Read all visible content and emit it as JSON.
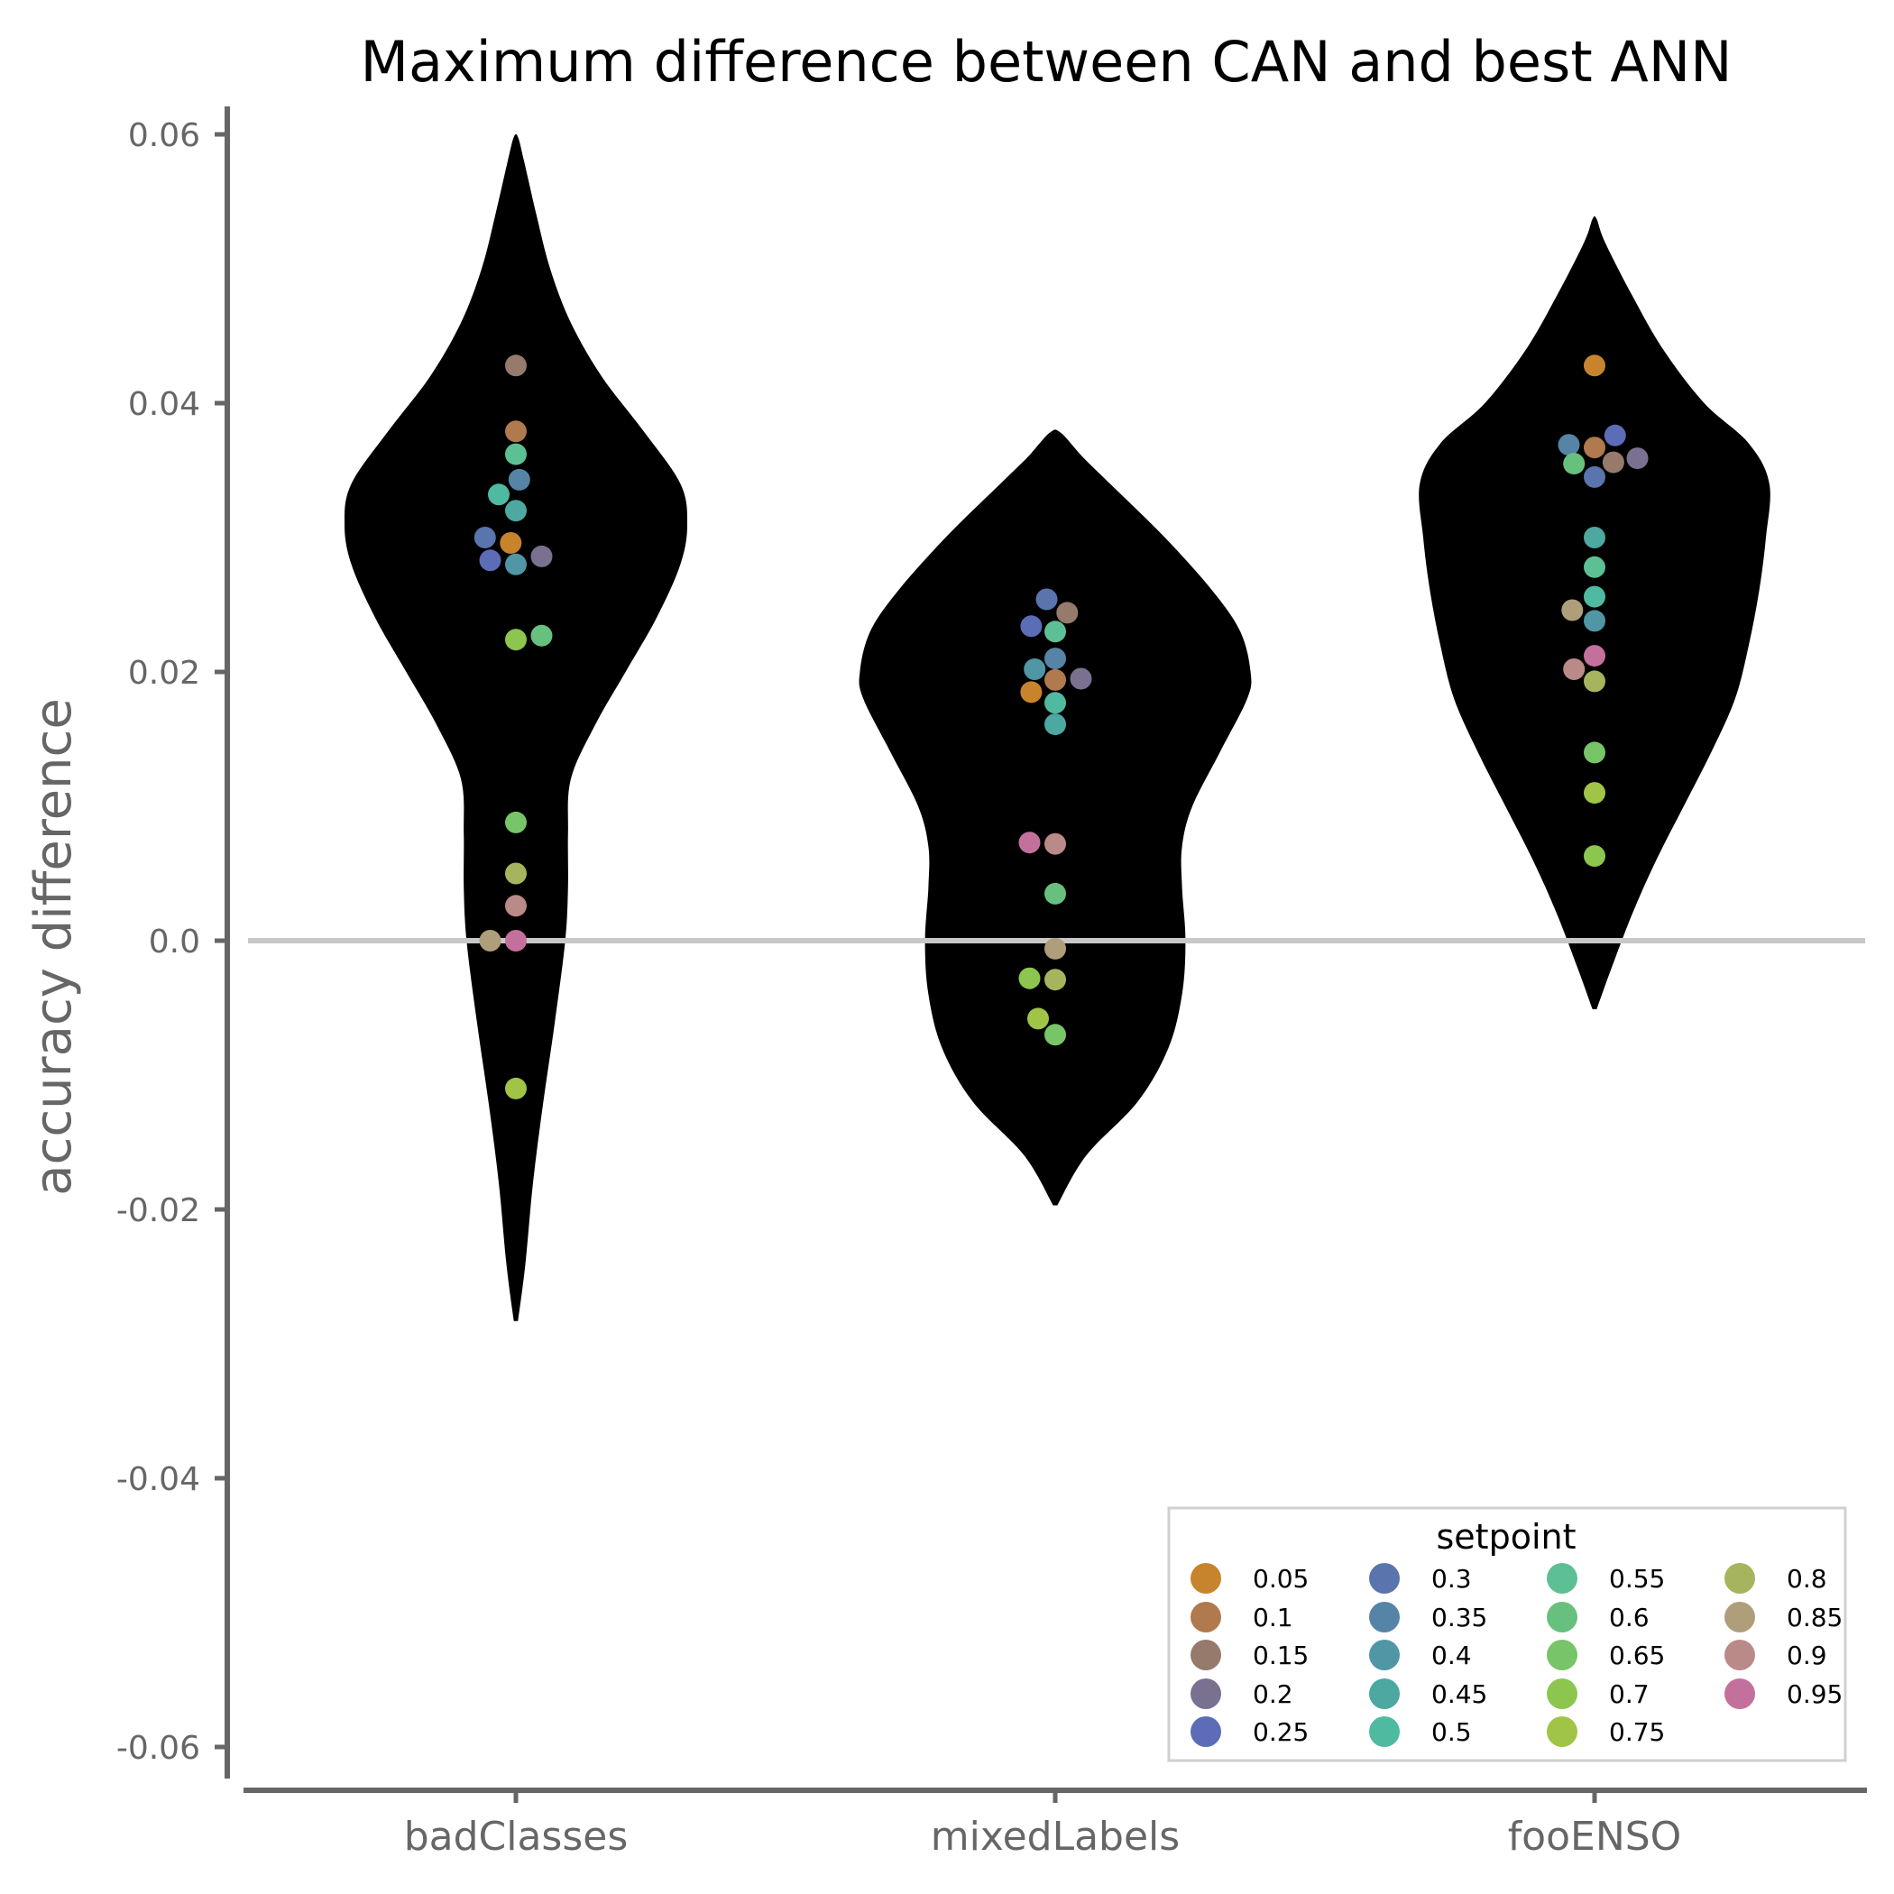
{
  "chart_data": {
    "type": "violin",
    "title": "Maximum difference between CAN and best ANN",
    "xlabel": "",
    "ylabel": "accuracy difference",
    "ylim": [
      -0.06,
      0.06
    ],
    "yticks": [
      -0.06,
      -0.04,
      -0.02,
      0.0,
      0.02,
      0.04,
      0.06
    ],
    "ytick_labels": [
      "-0.06",
      "-0.04",
      "-0.02",
      "0.0",
      "0.02",
      "0.04",
      "0.06"
    ],
    "reference_line": 0.0,
    "categories": [
      "badClasses",
      "mixedLabels",
      "fooENSO"
    ],
    "violin_color": "#000000",
    "violins": [
      {
        "category": "badClasses",
        "min": -0.0283,
        "max": 0.0598,
        "profile": [
          [
            -0.0283,
            0.003
          ],
          [
            -0.024,
            0.014
          ],
          [
            -0.018,
            0.025
          ],
          [
            -0.012,
            0.04
          ],
          [
            -0.006,
            0.057
          ],
          [
            0.0,
            0.072
          ],
          [
            0.004,
            0.076
          ],
          [
            0.008,
            0.076
          ],
          [
            0.012,
            0.08
          ],
          [
            0.016,
            0.115
          ],
          [
            0.02,
            0.16
          ],
          [
            0.024,
            0.205
          ],
          [
            0.028,
            0.24
          ],
          [
            0.031,
            0.25
          ],
          [
            0.034,
            0.24
          ],
          [
            0.038,
            0.185
          ],
          [
            0.042,
            0.125
          ],
          [
            0.046,
            0.08
          ],
          [
            0.05,
            0.05
          ],
          [
            0.054,
            0.03
          ],
          [
            0.058,
            0.012
          ],
          [
            0.0598,
            0.003
          ]
        ]
      },
      {
        "category": "mixedLabels",
        "min": -0.0197,
        "max": 0.0378,
        "profile": [
          [
            -0.0197,
            0.003
          ],
          [
            -0.016,
            0.045
          ],
          [
            -0.012,
            0.12
          ],
          [
            -0.008,
            0.165
          ],
          [
            -0.004,
            0.185
          ],
          [
            0.0,
            0.19
          ],
          [
            0.004,
            0.185
          ],
          [
            0.007,
            0.185
          ],
          [
            0.01,
            0.2
          ],
          [
            0.014,
            0.24
          ],
          [
            0.018,
            0.28
          ],
          [
            0.02,
            0.285
          ],
          [
            0.023,
            0.27
          ],
          [
            0.026,
            0.23
          ],
          [
            0.03,
            0.16
          ],
          [
            0.034,
            0.08
          ],
          [
            0.036,
            0.04
          ],
          [
            0.0378,
            0.008
          ]
        ]
      },
      {
        "category": "fooENSO",
        "min": -0.0051,
        "max": 0.0537,
        "profile": [
          [
            -0.0051,
            0.003
          ],
          [
            -0.002,
            0.025
          ],
          [
            0.002,
            0.055
          ],
          [
            0.006,
            0.09
          ],
          [
            0.01,
            0.13
          ],
          [
            0.014,
            0.17
          ],
          [
            0.018,
            0.205
          ],
          [
            0.022,
            0.225
          ],
          [
            0.026,
            0.24
          ],
          [
            0.03,
            0.25
          ],
          [
            0.034,
            0.255
          ],
          [
            0.037,
            0.225
          ],
          [
            0.04,
            0.16
          ],
          [
            0.044,
            0.1
          ],
          [
            0.048,
            0.055
          ],
          [
            0.052,
            0.015
          ],
          [
            0.0537,
            0.003
          ]
        ]
      }
    ],
    "legend": {
      "title": "setpoint",
      "placement": "bottom-right",
      "entries": [
        {
          "label": "0.05",
          "color": "#C8842C"
        },
        {
          "label": "0.1",
          "color": "#B07A4E"
        },
        {
          "label": "0.15",
          "color": "#967A6C"
        },
        {
          "label": "0.2",
          "color": "#7A7190"
        },
        {
          "label": "0.25",
          "color": "#5C6CB6"
        },
        {
          "label": "0.3",
          "color": "#5A74AE"
        },
        {
          "label": "0.35",
          "color": "#5684A6"
        },
        {
          "label": "0.4",
          "color": "#5096A4"
        },
        {
          "label": "0.45",
          "color": "#4CA8A0"
        },
        {
          "label": "0.5",
          "color": "#50BAA0"
        },
        {
          "label": "0.55",
          "color": "#5CC094"
        },
        {
          "label": "0.6",
          "color": "#68C07E"
        },
        {
          "label": "0.65",
          "color": "#78C468"
        },
        {
          "label": "0.7",
          "color": "#8CC64E"
        },
        {
          "label": "0.75",
          "color": "#A0C446"
        },
        {
          "label": "0.8",
          "color": "#A6B45E"
        },
        {
          "label": "0.85",
          "color": "#AE9E7A"
        },
        {
          "label": "0.9",
          "color": "#BA8A88"
        },
        {
          "label": "0.95",
          "color": "#C4709C"
        }
      ]
    },
    "points": [
      {
        "category": "badClasses",
        "setpoint": "0.05",
        "y": 0.0296,
        "offset": -0.03
      },
      {
        "category": "badClasses",
        "setpoint": "0.1",
        "y": 0.0379,
        "offset": 0.0
      },
      {
        "category": "badClasses",
        "setpoint": "0.15",
        "y": 0.0428,
        "offset": 0.0
      },
      {
        "category": "badClasses",
        "setpoint": "0.2",
        "y": 0.0286,
        "offset": 0.15
      },
      {
        "category": "badClasses",
        "setpoint": "0.25",
        "y": 0.0283,
        "offset": -0.15
      },
      {
        "category": "badClasses",
        "setpoint": "0.3",
        "y": 0.03,
        "offset": -0.18
      },
      {
        "category": "badClasses",
        "setpoint": "0.35",
        "y": 0.0343,
        "offset": 0.02
      },
      {
        "category": "badClasses",
        "setpoint": "0.4",
        "y": 0.028,
        "offset": 0.0
      },
      {
        "category": "badClasses",
        "setpoint": "0.45",
        "y": 0.032,
        "offset": 0.0
      },
      {
        "category": "badClasses",
        "setpoint": "0.5",
        "y": 0.0332,
        "offset": -0.1
      },
      {
        "category": "badClasses",
        "setpoint": "0.55",
        "y": 0.0362,
        "offset": 0.0
      },
      {
        "category": "badClasses",
        "setpoint": "0.6",
        "y": 0.0227,
        "offset": 0.15
      },
      {
        "category": "badClasses",
        "setpoint": "0.65",
        "y": 0.0088,
        "offset": 0.0
      },
      {
        "category": "badClasses",
        "setpoint": "0.7",
        "y": 0.0224,
        "offset": 0.0
      },
      {
        "category": "badClasses",
        "setpoint": "0.75",
        "y": -0.011,
        "offset": 0.0
      },
      {
        "category": "badClasses",
        "setpoint": "0.8",
        "y": 0.005,
        "offset": 0.0
      },
      {
        "category": "badClasses",
        "setpoint": "0.85",
        "y": 0.0,
        "offset": -0.15
      },
      {
        "category": "badClasses",
        "setpoint": "0.9",
        "y": 0.0026,
        "offset": 0.0
      },
      {
        "category": "badClasses",
        "setpoint": "0.95",
        "y": 0.0,
        "offset": 0.0
      },
      {
        "category": "mixedLabels",
        "setpoint": "0.05",
        "y": 0.0185,
        "offset": -0.14
      },
      {
        "category": "mixedLabels",
        "setpoint": "0.1",
        "y": 0.0194,
        "offset": 0.0
      },
      {
        "category": "mixedLabels",
        "setpoint": "0.15",
        "y": 0.0244,
        "offset": 0.07
      },
      {
        "category": "mixedLabels",
        "setpoint": "0.2",
        "y": 0.0195,
        "offset": 0.15
      },
      {
        "category": "mixedLabels",
        "setpoint": "0.25",
        "y": 0.0234,
        "offset": -0.14
      },
      {
        "category": "mixedLabels",
        "setpoint": "0.3",
        "y": 0.0254,
        "offset": -0.05
      },
      {
        "category": "mixedLabels",
        "setpoint": "0.35",
        "y": 0.021,
        "offset": 0.0
      },
      {
        "category": "mixedLabels",
        "setpoint": "0.4",
        "y": 0.0202,
        "offset": -0.12
      },
      {
        "category": "mixedLabels",
        "setpoint": "0.45",
        "y": 0.0161,
        "offset": 0.0
      },
      {
        "category": "mixedLabels",
        "setpoint": "0.5",
        "y": 0.0177,
        "offset": 0.0
      },
      {
        "category": "mixedLabels",
        "setpoint": "0.55",
        "y": 0.023,
        "offset": 0.0
      },
      {
        "category": "mixedLabels",
        "setpoint": "0.6",
        "y": 0.0035,
        "offset": 0.0
      },
      {
        "category": "mixedLabels",
        "setpoint": "0.65",
        "y": -0.007,
        "offset": 0.0
      },
      {
        "category": "mixedLabels",
        "setpoint": "0.7",
        "y": -0.0028,
        "offset": -0.15
      },
      {
        "category": "mixedLabels",
        "setpoint": "0.75",
        "y": -0.0058,
        "offset": -0.1
      },
      {
        "category": "mixedLabels",
        "setpoint": "0.8",
        "y": -0.0029,
        "offset": 0.0
      },
      {
        "category": "mixedLabels",
        "setpoint": "0.85",
        "y": -0.0006,
        "offset": 0.0
      },
      {
        "category": "mixedLabels",
        "setpoint": "0.9",
        "y": 0.0072,
        "offset": 0.0
      },
      {
        "category": "mixedLabels",
        "setpoint": "0.95",
        "y": 0.0073,
        "offset": -0.15
      },
      {
        "category": "fooENSO",
        "setpoint": "0.05",
        "y": 0.0428,
        "offset": 0.0
      },
      {
        "category": "fooENSO",
        "setpoint": "0.1",
        "y": 0.0367,
        "offset": 0.0
      },
      {
        "category": "fooENSO",
        "setpoint": "0.15",
        "y": 0.0356,
        "offset": 0.11
      },
      {
        "category": "fooENSO",
        "setpoint": "0.2",
        "y": 0.0359,
        "offset": 0.25
      },
      {
        "category": "fooENSO",
        "setpoint": "0.25",
        "y": 0.0376,
        "offset": 0.12
      },
      {
        "category": "fooENSO",
        "setpoint": "0.3",
        "y": 0.0345,
        "offset": 0.0
      },
      {
        "category": "fooENSO",
        "setpoint": "0.35",
        "y": 0.0369,
        "offset": -0.15
      },
      {
        "category": "fooENSO",
        "setpoint": "0.4",
        "y": 0.0238,
        "offset": 0.0
      },
      {
        "category": "fooENSO",
        "setpoint": "0.45",
        "y": 0.03,
        "offset": 0.0
      },
      {
        "category": "fooENSO",
        "setpoint": "0.5",
        "y": 0.0256,
        "offset": 0.0
      },
      {
        "category": "fooENSO",
        "setpoint": "0.55",
        "y": 0.0278,
        "offset": 0.0
      },
      {
        "category": "fooENSO",
        "setpoint": "0.6",
        "y": 0.0355,
        "offset": -0.12
      },
      {
        "category": "fooENSO",
        "setpoint": "0.65",
        "y": 0.014,
        "offset": 0.0
      },
      {
        "category": "fooENSO",
        "setpoint": "0.7",
        "y": 0.0063,
        "offset": 0.0
      },
      {
        "category": "fooENSO",
        "setpoint": "0.75",
        "y": 0.011,
        "offset": 0.0
      },
      {
        "category": "fooENSO",
        "setpoint": "0.8",
        "y": 0.0193,
        "offset": 0.0
      },
      {
        "category": "fooENSO",
        "setpoint": "0.85",
        "y": 0.0246,
        "offset": -0.13
      },
      {
        "category": "fooENSO",
        "setpoint": "0.9",
        "y": 0.0202,
        "offset": -0.12
      },
      {
        "category": "fooENSO",
        "setpoint": "0.95",
        "y": 0.0212,
        "offset": 0.0
      }
    ]
  }
}
